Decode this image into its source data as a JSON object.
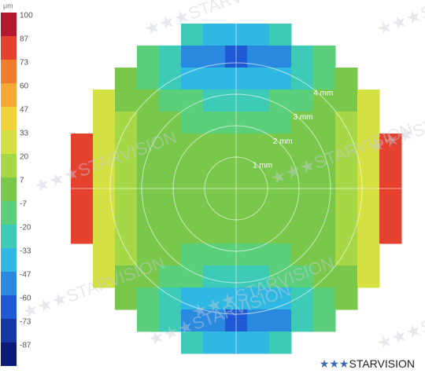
{
  "chart_data": {
    "type": "heatmap",
    "colorbar": {
      "unit": "μm",
      "levels": [
        100,
        87,
        73,
        60,
        47,
        33,
        20,
        7,
        -7,
        -20,
        -33,
        -47,
        -60,
        -73,
        -87
      ],
      "colors": [
        "#b3182e",
        "#e4412f",
        "#f07d2c",
        "#f5a833",
        "#f1d43b",
        "#d5e142",
        "#a5d747",
        "#79c84b",
        "#5ccf7a",
        "#3dcbb7",
        "#2fb8e2",
        "#2a8ae0",
        "#1f5ad4",
        "#1538a6",
        "#0b1a78"
      ]
    },
    "x": [
      -4.9,
      -4.2,
      -3.5,
      -2.8,
      -2.1,
      -1.4,
      -0.7,
      0,
      0.7,
      1.4,
      2.1,
      2.8,
      3.5,
      4.2,
      4.9
    ],
    "y": [
      4.9,
      4.2,
      3.5,
      2.8,
      2.1,
      1.4,
      0.7,
      0,
      -0.7,
      -1.4,
      -2.1,
      -2.8,
      -3.5,
      -4.2,
      -4.9
    ],
    "z": [
      [
        null,
        null,
        null,
        null,
        null,
        -24,
        -31,
        -33,
        -31,
        -24,
        null,
        null,
        null,
        null,
        null
      ],
      [
        null,
        null,
        null,
        -12,
        -24,
        -42,
        -52,
        -55,
        -52,
        -42,
        -24,
        -12,
        null,
        null,
        null
      ],
      [
        null,
        null,
        6,
        -5,
        -15,
        -28,
        -36,
        -38,
        -36,
        -28,
        -15,
        -5,
        6,
        null,
        null
      ],
      [
        null,
        32,
        12,
        3,
        -4,
        -12,
        -17,
        -18,
        -17,
        -12,
        -4,
        3,
        12,
        32,
        null
      ],
      [
        null,
        34,
        15,
        7,
        2,
        -3,
        -6,
        -7,
        -6,
        -3,
        2,
        7,
        15,
        34,
        null
      ],
      [
        81,
        36,
        17,
        11,
        7,
        3,
        1,
        1,
        1,
        3,
        7,
        11,
        17,
        36,
        81
      ],
      [
        82,
        37,
        18,
        12,
        9,
        6,
        5,
        5,
        5,
        6,
        9,
        12,
        18,
        37,
        82
      ],
      [
        82,
        37,
        19,
        13,
        10,
        8,
        7,
        7,
        7,
        8,
        10,
        13,
        19,
        37,
        82
      ],
      [
        82,
        37,
        18,
        12,
        9,
        6,
        5,
        5,
        5,
        6,
        9,
        12,
        18,
        37,
        82
      ],
      [
        81,
        36,
        17,
        11,
        7,
        3,
        1,
        1,
        1,
        3,
        7,
        11,
        17,
        36,
        81
      ],
      [
        null,
        34,
        15,
        7,
        2,
        -3,
        -6,
        -7,
        -6,
        -3,
        2,
        7,
        15,
        34,
        null
      ],
      [
        null,
        32,
        12,
        3,
        -4,
        -12,
        -17,
        -18,
        -17,
        -12,
        -4,
        3,
        12,
        32,
        null
      ],
      [
        null,
        null,
        6,
        -5,
        -15,
        -28,
        -36,
        -38,
        -36,
        -28,
        -15,
        -5,
        6,
        null,
        null
      ],
      [
        null,
        null,
        null,
        -12,
        -24,
        -42,
        -52,
        -55,
        -52,
        -42,
        -24,
        -12,
        null,
        null,
        null
      ],
      [
        null,
        null,
        null,
        null,
        null,
        -24,
        -31,
        -33,
        -31,
        -24,
        null,
        null,
        null,
        null,
        null
      ]
    ],
    "rings": [
      {
        "value": 1,
        "label": "1 mm"
      },
      {
        "value": 2,
        "label": "2 mm"
      },
      {
        "value": 3,
        "label": "3 mm"
      },
      {
        "value": 4,
        "label": "4 mm"
      }
    ],
    "watermark": "★★★STARVISION",
    "logo": {
      "stars": "★★★",
      "text": "STARVISION"
    }
  }
}
